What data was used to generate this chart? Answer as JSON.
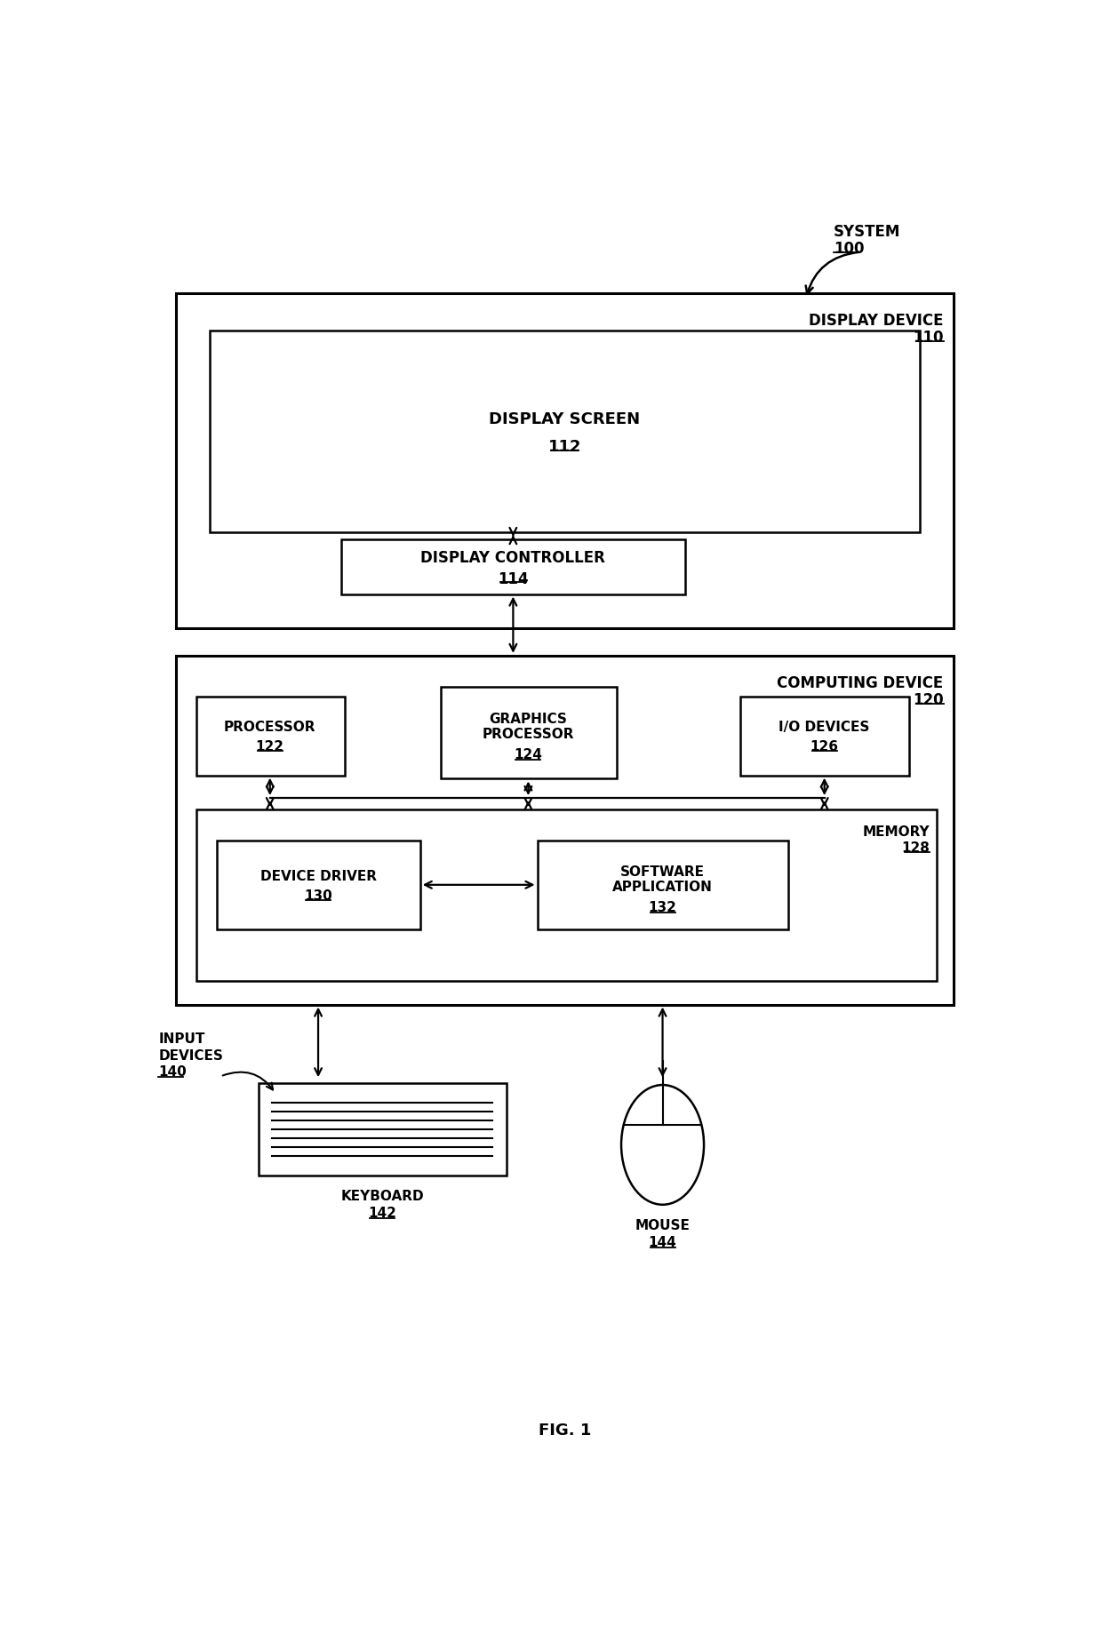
{
  "bg_color": "#ffffff",
  "line_color": "#000000",
  "font_color": "#000000",
  "fig_width": 12.4,
  "fig_height": 18.58,
  "system_label": "SYSTEM",
  "system_num": "100",
  "display_device_label": "DISPLAY DEVICE",
  "display_device_num": "110",
  "display_screen_label": "DISPLAY SCREEN",
  "display_screen_num": "112",
  "display_controller_label": "DISPLAY CONTROLLER",
  "display_controller_num": "114",
  "computing_device_label": "COMPUTING DEVICE",
  "computing_device_num": "120",
  "processor_label": "PROCESSOR",
  "processor_num": "122",
  "graphics_processor_label": "GRAPHICS\nPROCESSOR",
  "graphics_processor_num": "124",
  "io_devices_label": "I/O DEVICES",
  "io_devices_num": "126",
  "memory_label": "MEMORY",
  "memory_num": "128",
  "device_driver_label": "DEVICE DRIVER",
  "device_driver_num": "130",
  "software_application_label": "SOFTWARE\nAPPLICATION",
  "software_application_num": "132",
  "input_devices_label": "INPUT\nDEVICES",
  "input_devices_num": "140",
  "keyboard_label": "KEYBOARD",
  "keyboard_num": "142",
  "mouse_label": "MOUSE",
  "mouse_num": "144",
  "fig_label": "FIG. 1",
  "lw_outer": 2.2,
  "lw_inner": 1.8,
  "lw_arrow": 1.6,
  "fontsize_main": 11,
  "fontsize_label": 10.5,
  "fontsize_fig": 12
}
